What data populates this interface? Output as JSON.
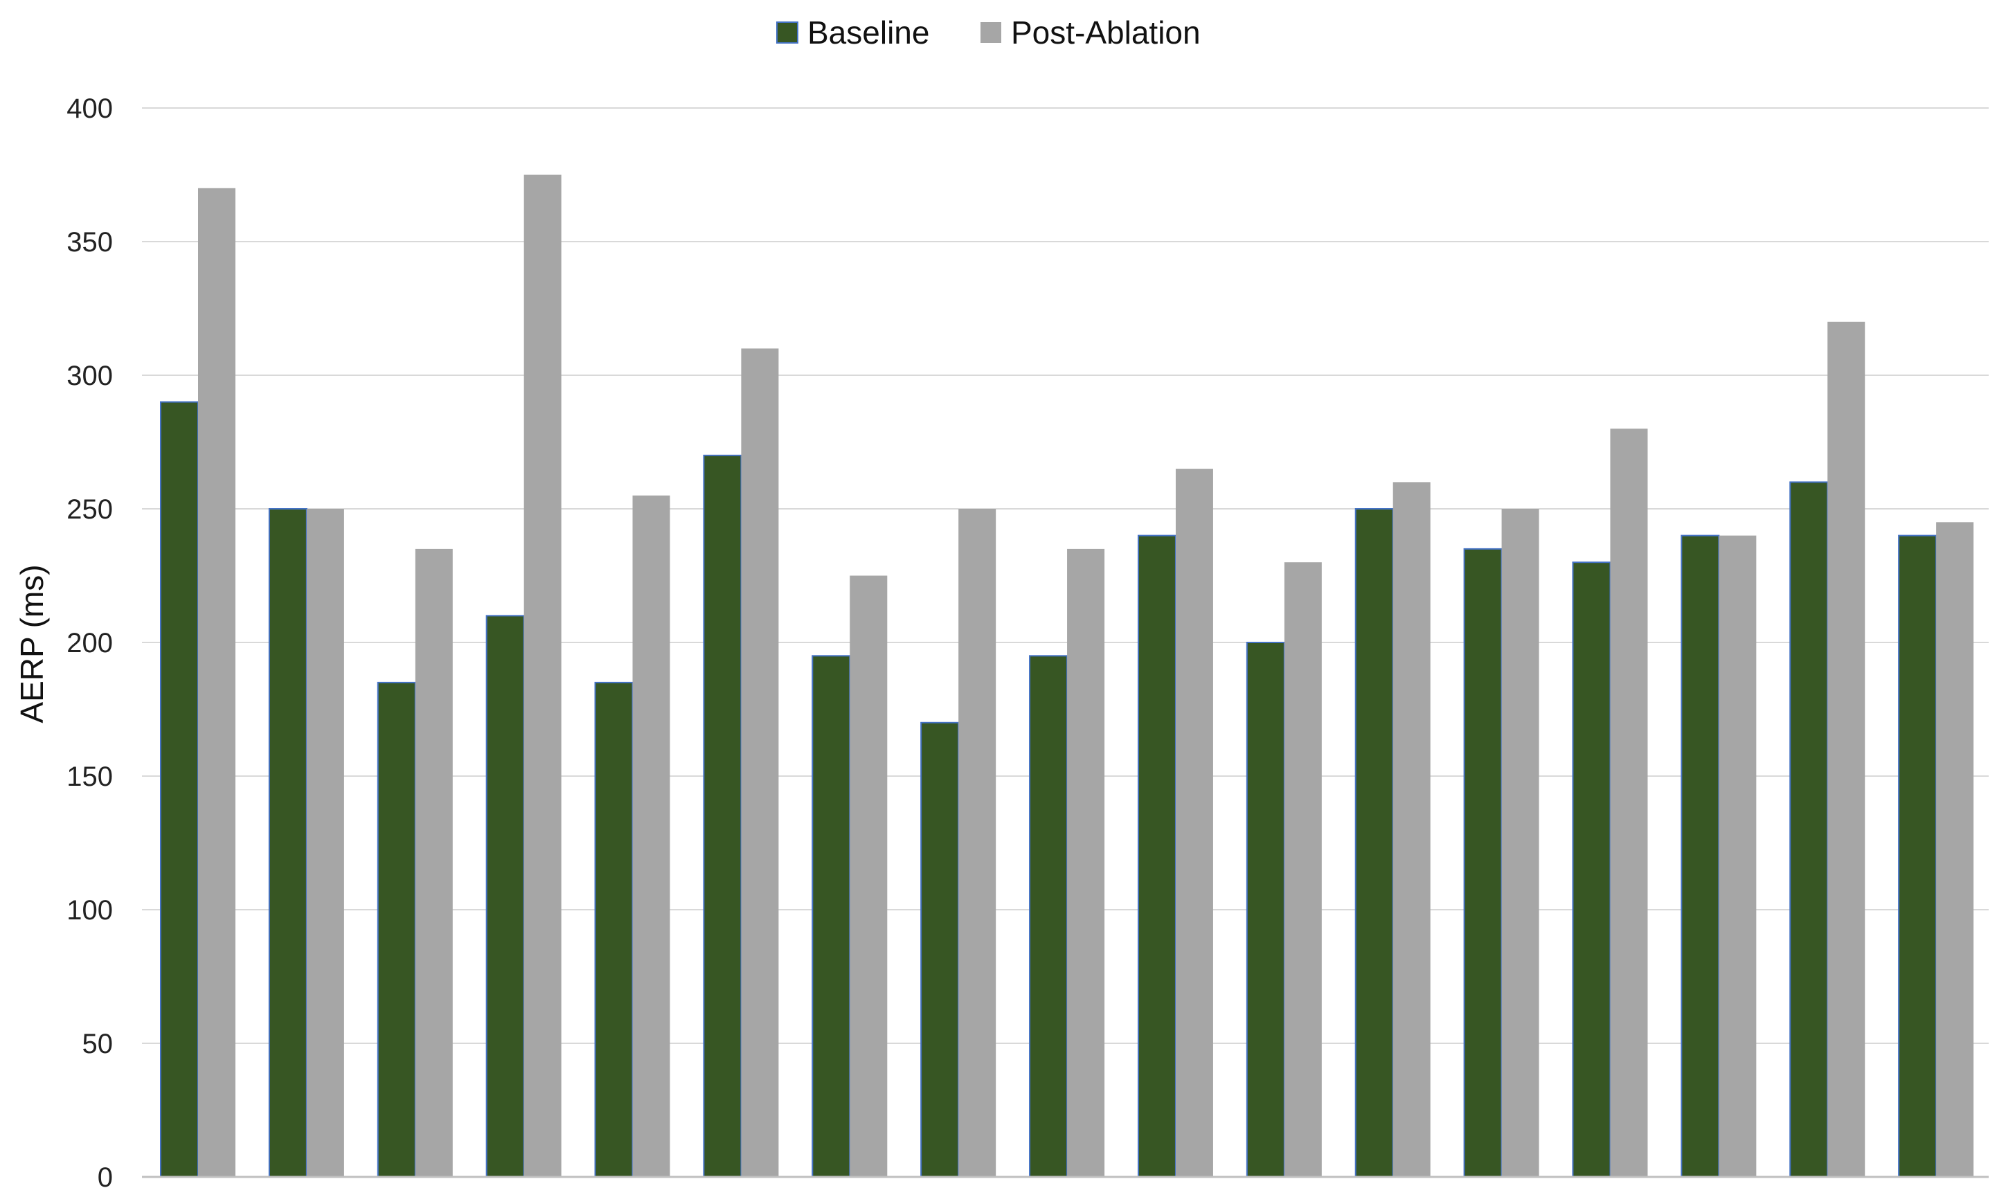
{
  "chart_data": {
    "type": "bar",
    "title": "",
    "xlabel": "",
    "ylabel": "AERP (ms)",
    "ylim": [
      0,
      400
    ],
    "yticks": [
      0,
      50,
      100,
      150,
      200,
      250,
      300,
      350,
      400
    ],
    "grid": true,
    "legend_position": "top-center",
    "categories": [
      "",
      "",
      "",
      "",
      "",
      "",
      "",
      "",
      "",
      "",
      "",
      "",
      "",
      "",
      "",
      "",
      ""
    ],
    "series": [
      {
        "name": "Baseline",
        "color": "#375623",
        "values": [
          290,
          250,
          185,
          210,
          185,
          270,
          195,
          170,
          195,
          240,
          200,
          250,
          235,
          230,
          240,
          260,
          240
        ]
      },
      {
        "name": "Post-Ablation",
        "color": "#A6A6A6",
        "values": [
          370,
          250,
          235,
          375,
          255,
          310,
          225,
          250,
          235,
          265,
          230,
          260,
          250,
          280,
          240,
          320,
          245
        ]
      }
    ]
  }
}
